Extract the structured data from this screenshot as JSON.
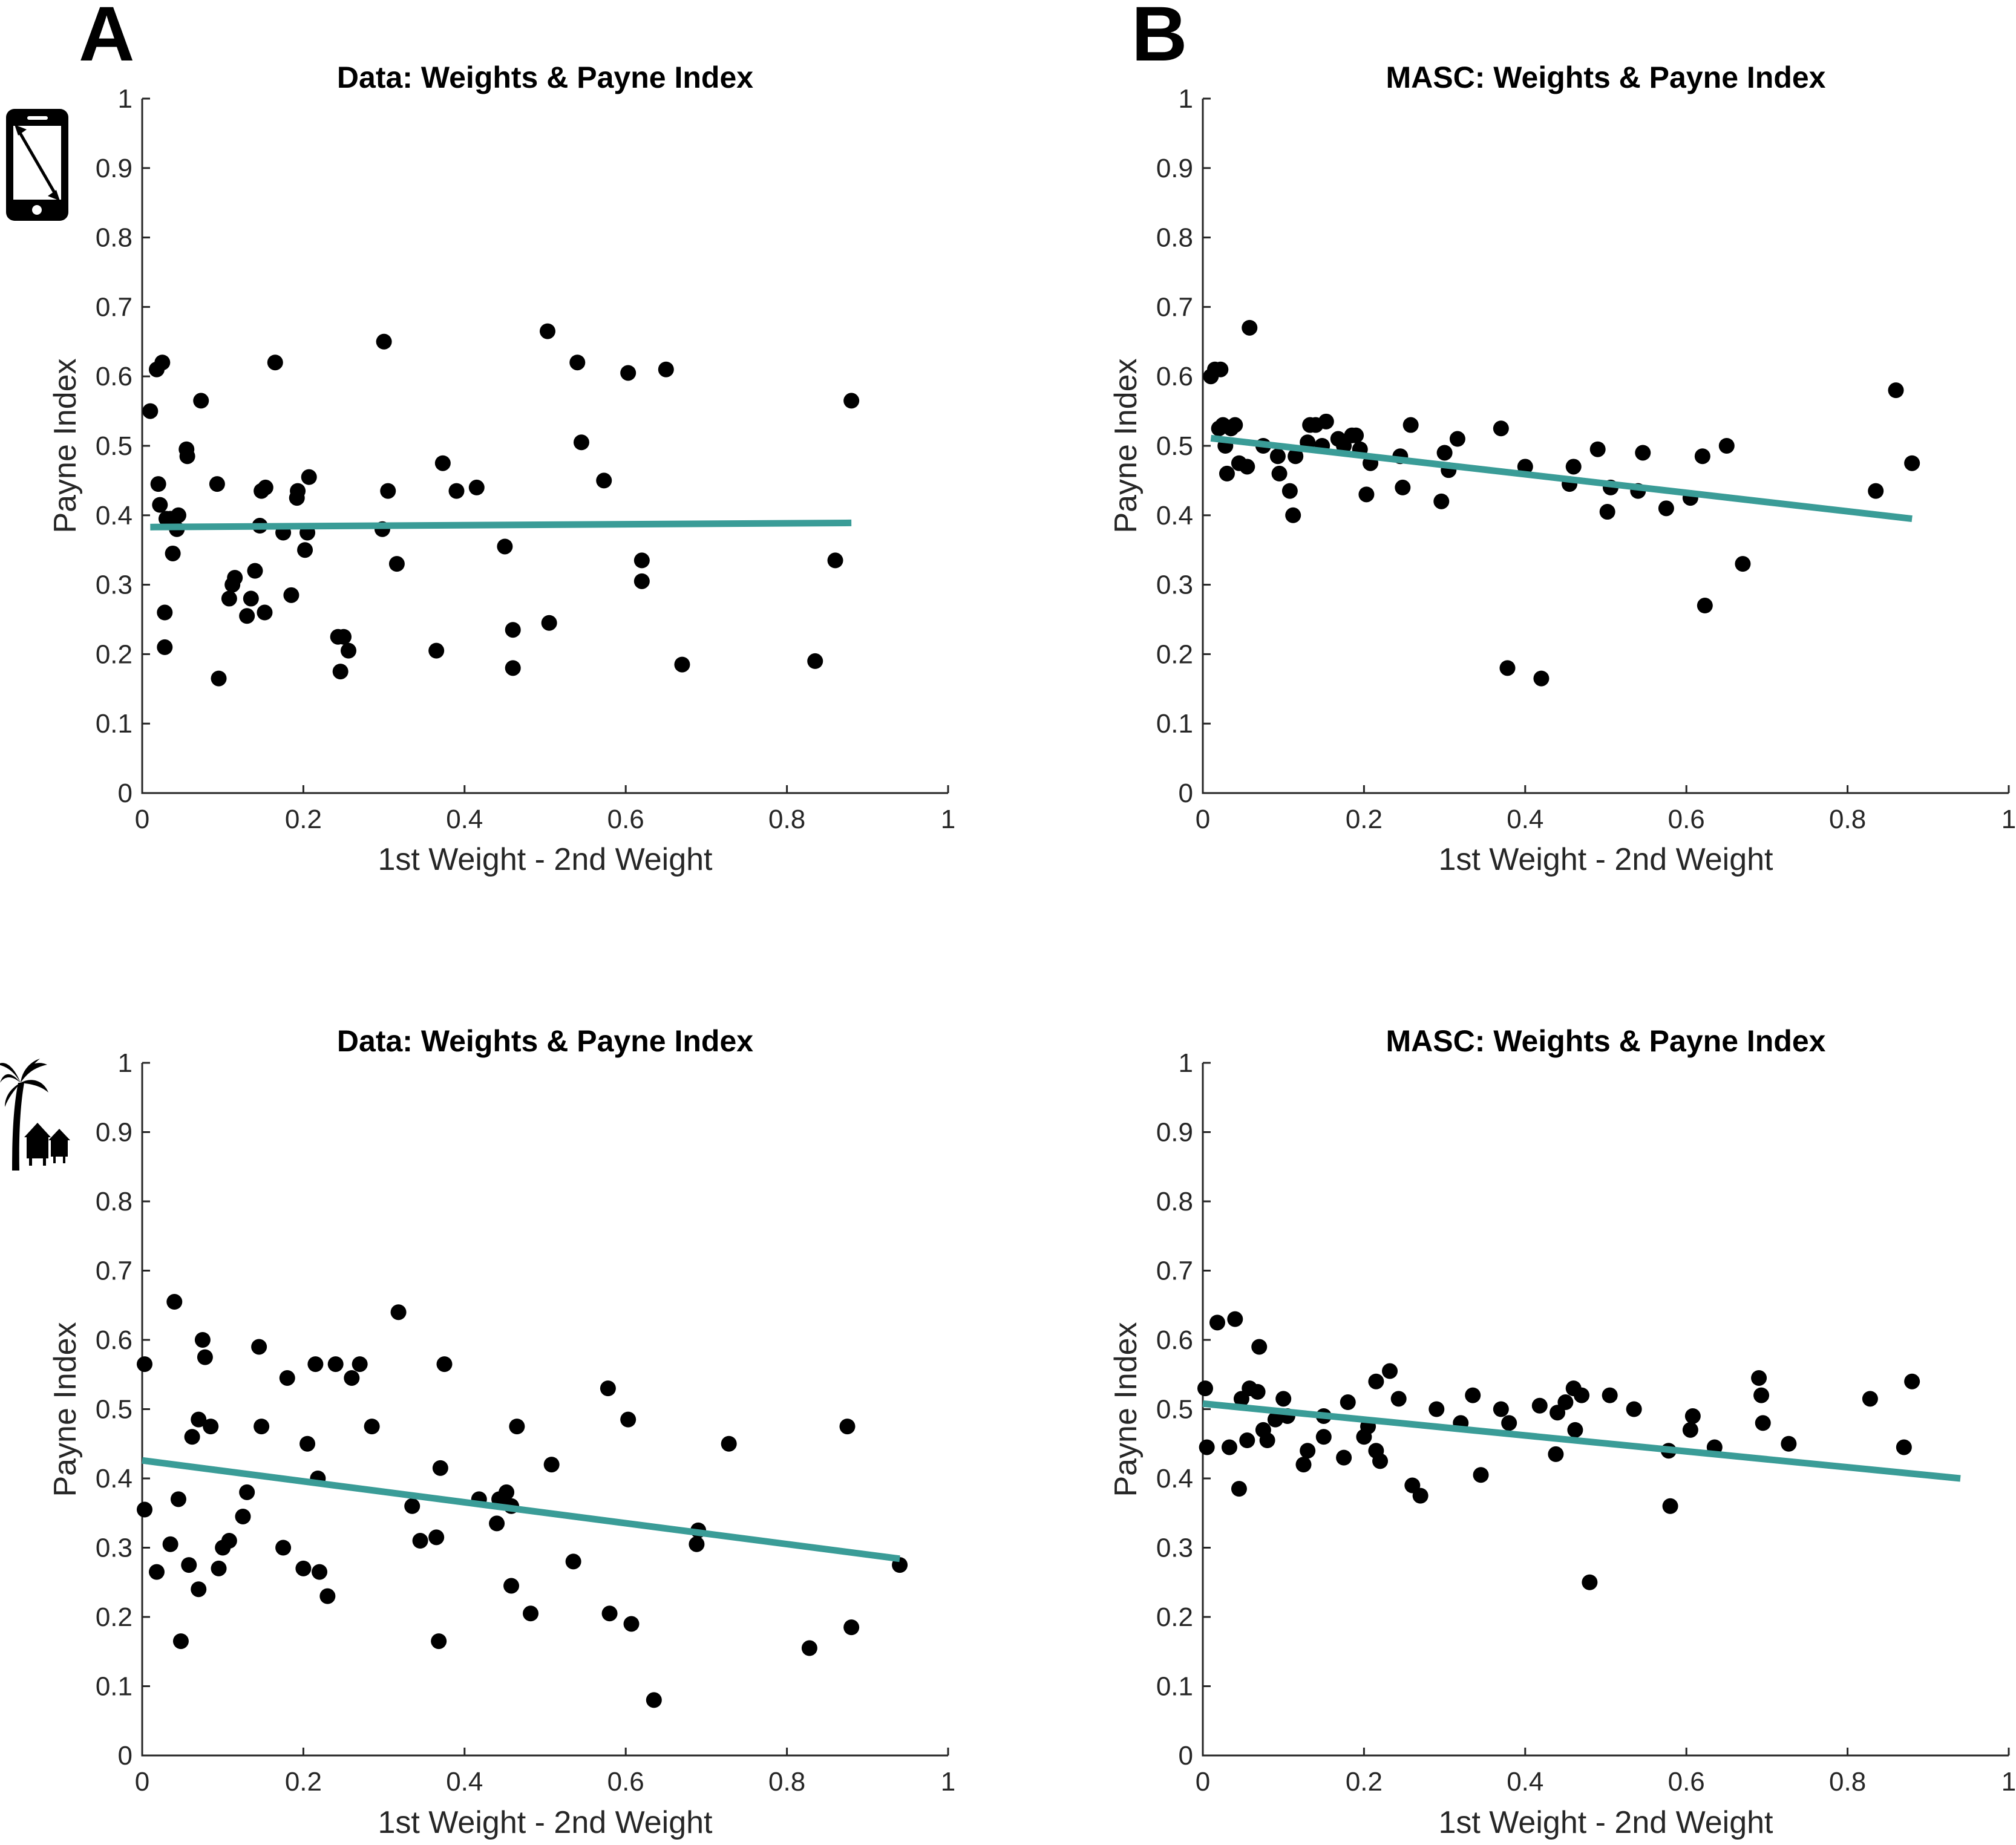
{
  "panels": {
    "A": "A",
    "B": "B"
  },
  "row_icons": [
    "phone-icon",
    "palm-tree-icon"
  ],
  "colors": {
    "fit_line": "#3a9c97",
    "points": "#000000",
    "axis": "#262626"
  },
  "chart_data": [
    {
      "type": "scatter",
      "title": "Data: Weights & Payne Index",
      "xlabel": "1st Weight - 2nd Weight",
      "ylabel": "Payne Index",
      "xlim": [
        0,
        1
      ],
      "ylim": [
        0,
        1
      ],
      "xticks": [
        "0",
        "0.2",
        "0.4",
        "0.6",
        "0.8",
        "1"
      ],
      "yticks": [
        "0",
        "0.1",
        "0.2",
        "0.3",
        "0.4",
        "0.5",
        "0.6",
        "0.7",
        "0.8",
        "0.9",
        "1"
      ],
      "grid": false,
      "fit_line": {
        "x": [
          0.01,
          0.88
        ],
        "y": [
          0.383,
          0.389
        ]
      },
      "points": [
        [
          0.01,
          0.55
        ],
        [
          0.018,
          0.61
        ],
        [
          0.02,
          0.445
        ],
        [
          0.022,
          0.415
        ],
        [
          0.025,
          0.62
        ],
        [
          0.028,
          0.26
        ],
        [
          0.028,
          0.21
        ],
        [
          0.03,
          0.395
        ],
        [
          0.035,
          0.395
        ],
        [
          0.038,
          0.345
        ],
        [
          0.043,
          0.38
        ],
        [
          0.045,
          0.4
        ],
        [
          0.055,
          0.495
        ],
        [
          0.056,
          0.485
        ],
        [
          0.073,
          0.565
        ],
        [
          0.093,
          0.445
        ],
        [
          0.095,
          0.165
        ],
        [
          0.108,
          0.28
        ],
        [
          0.112,
          0.3
        ],
        [
          0.115,
          0.31
        ],
        [
          0.13,
          0.255
        ],
        [
          0.135,
          0.28
        ],
        [
          0.14,
          0.32
        ],
        [
          0.146,
          0.385
        ],
        [
          0.148,
          0.435
        ],
        [
          0.152,
          0.26
        ],
        [
          0.153,
          0.44
        ],
        [
          0.165,
          0.62
        ],
        [
          0.175,
          0.375
        ],
        [
          0.185,
          0.285
        ],
        [
          0.192,
          0.425
        ],
        [
          0.193,
          0.435
        ],
        [
          0.202,
          0.35
        ],
        [
          0.205,
          0.375
        ],
        [
          0.207,
          0.455
        ],
        [
          0.243,
          0.225
        ],
        [
          0.246,
          0.175
        ],
        [
          0.25,
          0.225
        ],
        [
          0.256,
          0.205
        ],
        [
          0.298,
          0.38
        ],
        [
          0.3,
          0.65
        ],
        [
          0.305,
          0.435
        ],
        [
          0.316,
          0.33
        ],
        [
          0.365,
          0.205
        ],
        [
          0.373,
          0.475
        ],
        [
          0.39,
          0.435
        ],
        [
          0.415,
          0.44
        ],
        [
          0.45,
          0.355
        ],
        [
          0.46,
          0.18
        ],
        [
          0.46,
          0.235
        ],
        [
          0.503,
          0.665
        ],
        [
          0.505,
          0.245
        ],
        [
          0.54,
          0.62
        ],
        [
          0.545,
          0.505
        ],
        [
          0.573,
          0.45
        ],
        [
          0.603,
          0.605
        ],
        [
          0.62,
          0.335
        ],
        [
          0.62,
          0.305
        ],
        [
          0.65,
          0.61
        ],
        [
          0.67,
          0.185
        ],
        [
          0.835,
          0.19
        ],
        [
          0.86,
          0.335
        ],
        [
          0.88,
          0.565
        ]
      ]
    },
    {
      "type": "scatter",
      "title": "MASC: Weights & Payne Index",
      "xlabel": "1st Weight - 2nd Weight",
      "ylabel": "Payne Index",
      "xlim": [
        0,
        1
      ],
      "ylim": [
        0,
        1
      ],
      "xticks": [
        "0",
        "0.2",
        "0.4",
        "0.6",
        "0.8",
        "1"
      ],
      "yticks": [
        "0",
        "0.1",
        "0.2",
        "0.3",
        "0.4",
        "0.5",
        "0.6",
        "0.7",
        "0.8",
        "0.9",
        "1"
      ],
      "grid": false,
      "fit_line": {
        "x": [
          0.01,
          0.88
        ],
        "y": [
          0.511,
          0.395
        ]
      },
      "points": [
        [
          0.01,
          0.6
        ],
        [
          0.015,
          0.61
        ],
        [
          0.02,
          0.525
        ],
        [
          0.022,
          0.61
        ],
        [
          0.025,
          0.53
        ],
        [
          0.028,
          0.5
        ],
        [
          0.03,
          0.46
        ],
        [
          0.035,
          0.525
        ],
        [
          0.04,
          0.53
        ],
        [
          0.045,
          0.475
        ],
        [
          0.055,
          0.47
        ],
        [
          0.058,
          0.67
        ],
        [
          0.075,
          0.5
        ],
        [
          0.093,
          0.485
        ],
        [
          0.095,
          0.46
        ],
        [
          0.108,
          0.435
        ],
        [
          0.112,
          0.4
        ],
        [
          0.115,
          0.485
        ],
        [
          0.13,
          0.505
        ],
        [
          0.133,
          0.53
        ],
        [
          0.14,
          0.53
        ],
        [
          0.148,
          0.5
        ],
        [
          0.153,
          0.535
        ],
        [
          0.168,
          0.51
        ],
        [
          0.175,
          0.5
        ],
        [
          0.185,
          0.515
        ],
        [
          0.19,
          0.515
        ],
        [
          0.195,
          0.495
        ],
        [
          0.203,
          0.43
        ],
        [
          0.208,
          0.475
        ],
        [
          0.245,
          0.485
        ],
        [
          0.248,
          0.44
        ],
        [
          0.258,
          0.53
        ],
        [
          0.296,
          0.42
        ],
        [
          0.3,
          0.49
        ],
        [
          0.305,
          0.465
        ],
        [
          0.316,
          0.51
        ],
        [
          0.37,
          0.525
        ],
        [
          0.378,
          0.18
        ],
        [
          0.4,
          0.47
        ],
        [
          0.42,
          0.165
        ],
        [
          0.455,
          0.445
        ],
        [
          0.46,
          0.47
        ],
        [
          0.49,
          0.495
        ],
        [
          0.502,
          0.405
        ],
        [
          0.506,
          0.44
        ],
        [
          0.54,
          0.435
        ],
        [
          0.546,
          0.49
        ],
        [
          0.575,
          0.41
        ],
        [
          0.605,
          0.425
        ],
        [
          0.62,
          0.485
        ],
        [
          0.623,
          0.27
        ],
        [
          0.65,
          0.5
        ],
        [
          0.67,
          0.33
        ],
        [
          0.835,
          0.435
        ],
        [
          0.86,
          0.58
        ],
        [
          0.88,
          0.475
        ]
      ]
    },
    {
      "type": "scatter",
      "title": "Data: Weights & Payne Index",
      "xlabel": "1st Weight - 2nd Weight",
      "ylabel": "Payne Index",
      "xlim": [
        0,
        1
      ],
      "ylim": [
        0,
        1
      ],
      "xticks": [
        "0",
        "0.2",
        "0.4",
        "0.6",
        "0.8",
        "1"
      ],
      "yticks": [
        "0",
        "0.1",
        "0.2",
        "0.3",
        "0.4",
        "0.5",
        "0.6",
        "0.7",
        "0.8",
        "0.9",
        "1"
      ],
      "grid": false,
      "fit_line": {
        "x": [
          0.0,
          0.94
        ],
        "y": [
          0.426,
          0.284
        ]
      },
      "points": [
        [
          0.003,
          0.565
        ],
        [
          0.003,
          0.355
        ],
        [
          0.018,
          0.265
        ],
        [
          0.035,
          0.305
        ],
        [
          0.04,
          0.655
        ],
        [
          0.045,
          0.37
        ],
        [
          0.048,
          0.165
        ],
        [
          0.058,
          0.275
        ],
        [
          0.062,
          0.46
        ],
        [
          0.07,
          0.24
        ],
        [
          0.07,
          0.485
        ],
        [
          0.075,
          0.6
        ],
        [
          0.078,
          0.575
        ],
        [
          0.085,
          0.475
        ],
        [
          0.095,
          0.27
        ],
        [
          0.1,
          0.3
        ],
        [
          0.108,
          0.31
        ],
        [
          0.125,
          0.345
        ],
        [
          0.13,
          0.38
        ],
        [
          0.145,
          0.59
        ],
        [
          0.148,
          0.475
        ],
        [
          0.175,
          0.3
        ],
        [
          0.18,
          0.545
        ],
        [
          0.2,
          0.27
        ],
        [
          0.205,
          0.45
        ],
        [
          0.215,
          0.565
        ],
        [
          0.218,
          0.4
        ],
        [
          0.22,
          0.265
        ],
        [
          0.23,
          0.23
        ],
        [
          0.24,
          0.565
        ],
        [
          0.26,
          0.545
        ],
        [
          0.27,
          0.565
        ],
        [
          0.285,
          0.475
        ],
        [
          0.318,
          0.64
        ],
        [
          0.335,
          0.36
        ],
        [
          0.345,
          0.31
        ],
        [
          0.365,
          0.315
        ],
        [
          0.368,
          0.165
        ],
        [
          0.37,
          0.415
        ],
        [
          0.375,
          0.565
        ],
        [
          0.418,
          0.37
        ],
        [
          0.44,
          0.335
        ],
        [
          0.443,
          0.37
        ],
        [
          0.452,
          0.38
        ],
        [
          0.458,
          0.245
        ],
        [
          0.458,
          0.36
        ],
        [
          0.465,
          0.475
        ],
        [
          0.482,
          0.205
        ],
        [
          0.508,
          0.42
        ],
        [
          0.535,
          0.28
        ],
        [
          0.578,
          0.53
        ],
        [
          0.58,
          0.205
        ],
        [
          0.603,
          0.485
        ],
        [
          0.607,
          0.19
        ],
        [
          0.635,
          0.08
        ],
        [
          0.688,
          0.305
        ],
        [
          0.69,
          0.325
        ],
        [
          0.728,
          0.45
        ],
        [
          0.828,
          0.155
        ],
        [
          0.875,
          0.475
        ],
        [
          0.88,
          0.185
        ],
        [
          0.94,
          0.275
        ]
      ]
    },
    {
      "type": "scatter",
      "title": "MASC: Weights & Payne Index",
      "xlabel": "1st Weight - 2nd Weight",
      "ylabel": "Payne Index",
      "xlim": [
        0,
        1
      ],
      "ylim": [
        0,
        1
      ],
      "xticks": [
        "0",
        "0.2",
        "0.4",
        "0.6",
        "0.8",
        "1"
      ],
      "yticks": [
        "0",
        "0.1",
        "0.2",
        "0.3",
        "0.4",
        "0.5",
        "0.6",
        "0.7",
        "0.8",
        "0.9",
        "1"
      ],
      "grid": false,
      "fit_line": {
        "x": [
          0.0,
          0.94
        ],
        "y": [
          0.508,
          0.4
        ]
      },
      "points": [
        [
          0.003,
          0.53
        ],
        [
          0.005,
          0.445
        ],
        [
          0.018,
          0.625
        ],
        [
          0.033,
          0.445
        ],
        [
          0.04,
          0.63
        ],
        [
          0.045,
          0.385
        ],
        [
          0.048,
          0.515
        ],
        [
          0.055,
          0.455
        ],
        [
          0.058,
          0.53
        ],
        [
          0.068,
          0.525
        ],
        [
          0.07,
          0.59
        ],
        [
          0.075,
          0.47
        ],
        [
          0.08,
          0.455
        ],
        [
          0.09,
          0.485
        ],
        [
          0.1,
          0.515
        ],
        [
          0.105,
          0.49
        ],
        [
          0.125,
          0.42
        ],
        [
          0.13,
          0.44
        ],
        [
          0.15,
          0.46
        ],
        [
          0.15,
          0.49
        ],
        [
          0.175,
          0.43
        ],
        [
          0.18,
          0.51
        ],
        [
          0.2,
          0.46
        ],
        [
          0.205,
          0.475
        ],
        [
          0.215,
          0.44
        ],
        [
          0.215,
          0.54
        ],
        [
          0.22,
          0.425
        ],
        [
          0.232,
          0.555
        ],
        [
          0.243,
          0.515
        ],
        [
          0.26,
          0.39
        ],
        [
          0.27,
          0.375
        ],
        [
          0.29,
          0.5
        ],
        [
          0.32,
          0.48
        ],
        [
          0.335,
          0.52
        ],
        [
          0.345,
          0.405
        ],
        [
          0.37,
          0.5
        ],
        [
          0.38,
          0.48
        ],
        [
          0.418,
          0.505
        ],
        [
          0.438,
          0.435
        ],
        [
          0.44,
          0.495
        ],
        [
          0.45,
          0.51
        ],
        [
          0.46,
          0.53
        ],
        [
          0.462,
          0.47
        ],
        [
          0.47,
          0.52
        ],
        [
          0.48,
          0.25
        ],
        [
          0.505,
          0.52
        ],
        [
          0.535,
          0.5
        ],
        [
          0.578,
          0.44
        ],
        [
          0.58,
          0.36
        ],
        [
          0.605,
          0.47
        ],
        [
          0.608,
          0.49
        ],
        [
          0.635,
          0.445
        ],
        [
          0.69,
          0.545
        ],
        [
          0.693,
          0.52
        ],
        [
          0.695,
          0.48
        ],
        [
          0.727,
          0.45
        ],
        [
          0.828,
          0.515
        ],
        [
          0.87,
          0.445
        ],
        [
          0.88,
          0.54
        ]
      ]
    }
  ]
}
